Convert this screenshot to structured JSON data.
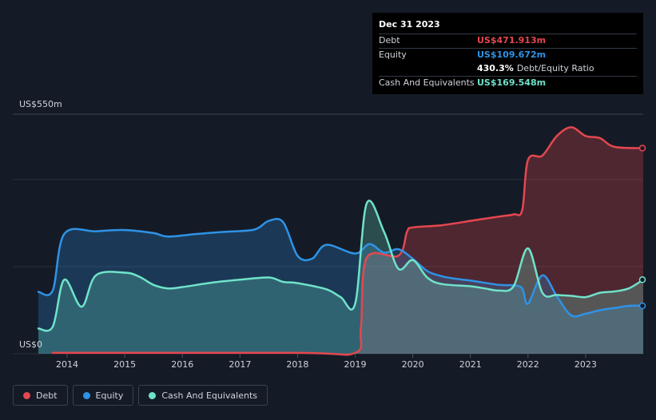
{
  "colors": {
    "debt": "#e5474f",
    "equity": "#2e93e6",
    "cash": "#6fe3c9",
    "background": "#151b26"
  },
  "tooltip": {
    "date": "Dec 31 2023",
    "rows": [
      {
        "label": "Debt",
        "value": "US$471.913m",
        "color": "#e5474f"
      },
      {
        "label": "Equity",
        "value": "US$109.672m",
        "color": "#2e93e6"
      },
      {
        "label": "",
        "value": "430.3%",
        "suffix": "Debt/Equity Ratio",
        "color": "#ffffff"
      },
      {
        "label": "Cash And Equivalents",
        "value": "US$169.548m",
        "color": "#6fe3c9"
      }
    ]
  },
  "chart_data": {
    "type": "area",
    "y_top_label": "US$550m",
    "y_bottom_label": "US$0",
    "ylim": [
      0,
      550
    ],
    "xlim": [
      2013.5,
      2024.0
    ],
    "x_tick_labels": [
      "2014",
      "2015",
      "2016",
      "2017",
      "2018",
      "2019",
      "2020",
      "2021",
      "2022",
      "2023"
    ],
    "gridlines": [
      0,
      200,
      400,
      550
    ],
    "series": [
      {
        "name": "Debt",
        "color": "#e5474f",
        "points": [
          [
            2013.75,
            2
          ],
          [
            2018.0,
            2
          ],
          [
            2019.0,
            2
          ],
          [
            2019.1,
            60
          ],
          [
            2019.2,
            220
          ],
          [
            2019.75,
            225
          ],
          [
            2019.9,
            280
          ],
          [
            2020.0,
            290
          ],
          [
            2020.5,
            295
          ],
          [
            2021.0,
            305
          ],
          [
            2021.5,
            315
          ],
          [
            2021.75,
            320
          ],
          [
            2021.9,
            330
          ],
          [
            2022.0,
            445
          ],
          [
            2022.25,
            455
          ],
          [
            2022.5,
            500
          ],
          [
            2022.75,
            520
          ],
          [
            2023.0,
            500
          ],
          [
            2023.25,
            495
          ],
          [
            2023.5,
            475
          ],
          [
            2024.0,
            472
          ]
        ]
      },
      {
        "name": "Equity",
        "color": "#2e93e6",
        "points": [
          [
            2013.5,
            142
          ],
          [
            2013.75,
            145
          ],
          [
            2013.95,
            275
          ],
          [
            2014.5,
            281
          ],
          [
            2015.0,
            284
          ],
          [
            2015.5,
            277
          ],
          [
            2015.75,
            269
          ],
          [
            2016.25,
            275
          ],
          [
            2016.75,
            280
          ],
          [
            2017.25,
            285
          ],
          [
            2017.5,
            305
          ],
          [
            2017.75,
            302
          ],
          [
            2018.0,
            225
          ],
          [
            2018.25,
            218
          ],
          [
            2018.5,
            250
          ],
          [
            2019.0,
            230
          ],
          [
            2019.25,
            252
          ],
          [
            2019.5,
            232
          ],
          [
            2019.75,
            240
          ],
          [
            2020.0,
            218
          ],
          [
            2020.25,
            190
          ],
          [
            2020.5,
            178
          ],
          [
            2020.75,
            172
          ],
          [
            2021.0,
            168
          ],
          [
            2021.5,
            158
          ],
          [
            2021.75,
            157
          ],
          [
            2021.9,
            150
          ],
          [
            2022.0,
            115
          ],
          [
            2022.25,
            180
          ],
          [
            2022.5,
            132
          ],
          [
            2022.75,
            88
          ],
          [
            2023.0,
            92
          ],
          [
            2023.25,
            100
          ],
          [
            2023.5,
            105
          ],
          [
            2023.75,
            110
          ],
          [
            2024.0,
            110
          ]
        ]
      },
      {
        "name": "Cash And Equivalents",
        "color": "#6fe3c9",
        "points": [
          [
            2013.5,
            58
          ],
          [
            2013.75,
            62
          ],
          [
            2013.95,
            170
          ],
          [
            2014.25,
            108
          ],
          [
            2014.5,
            180
          ],
          [
            2015.0,
            186
          ],
          [
            2015.25,
            177
          ],
          [
            2015.5,
            158
          ],
          [
            2015.75,
            150
          ],
          [
            2016.0,
            153
          ],
          [
            2016.5,
            163
          ],
          [
            2017.0,
            170
          ],
          [
            2017.5,
            175
          ],
          [
            2017.75,
            165
          ],
          [
            2018.0,
            162
          ],
          [
            2018.5,
            148
          ],
          [
            2018.75,
            130
          ],
          [
            2019.0,
            115
          ],
          [
            2019.2,
            345
          ],
          [
            2019.5,
            280
          ],
          [
            2019.75,
            195
          ],
          [
            2020.0,
            215
          ],
          [
            2020.25,
            175
          ],
          [
            2020.5,
            160
          ],
          [
            2021.0,
            155
          ],
          [
            2021.25,
            150
          ],
          [
            2021.5,
            145
          ],
          [
            2021.75,
            155
          ],
          [
            2022.0,
            242
          ],
          [
            2022.25,
            140
          ],
          [
            2022.5,
            135
          ],
          [
            2022.75,
            133
          ],
          [
            2023.0,
            130
          ],
          [
            2023.25,
            140
          ],
          [
            2023.5,
            143
          ],
          [
            2023.75,
            150
          ],
          [
            2024.0,
            170
          ]
        ]
      }
    ]
  },
  "legend": [
    {
      "label": "Debt",
      "color": "#e5474f"
    },
    {
      "label": "Equity",
      "color": "#2e93e6"
    },
    {
      "label": "Cash And Equivalents",
      "color": "#6fe3c9"
    }
  ]
}
